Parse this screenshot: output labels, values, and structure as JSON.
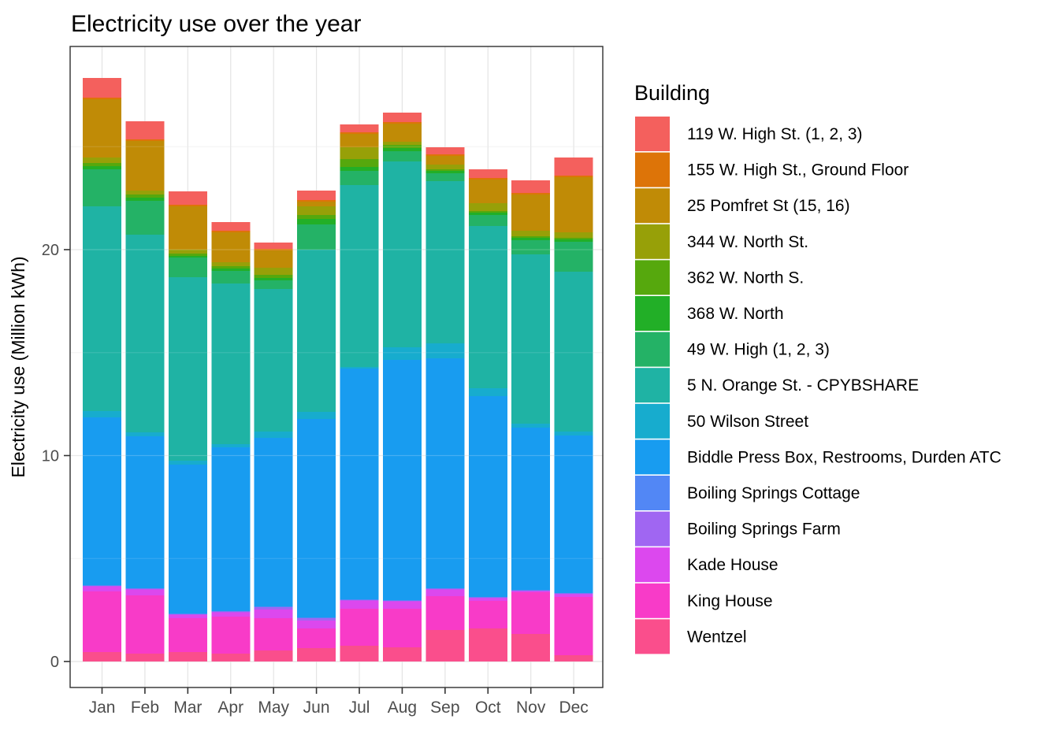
{
  "chart_data": {
    "type": "bar",
    "stacked": true,
    "title": "Electricity use over the year",
    "ylabel": "Electricity use (Million kWh)",
    "xlabel": "",
    "legend_title": "Building",
    "legend_position": "right",
    "grid": "on",
    "ylim": [
      0,
      29
    ],
    "y_major_ticks": [
      0,
      10,
      20
    ],
    "y_minor_ticks": [
      5,
      15,
      25
    ],
    "categories": [
      "Jan",
      "Feb",
      "Mar",
      "Apr",
      "May",
      "Jun",
      "Jul",
      "Aug",
      "Sep",
      "Oct",
      "Nov",
      "Dec"
    ],
    "series": [
      {
        "name": "119 W. High St. (1, 2, 3)",
        "color": "#F4605D",
        "values": [
          0.96,
          0.88,
          0.65,
          0.42,
          0.3,
          0.46,
          0.38,
          0.45,
          0.34,
          0.42,
          0.62,
          0.87
        ]
      },
      {
        "name": "155 W. High St., Ground Floor",
        "color": "#DD7408",
        "values": [
          0.08,
          0.07,
          0.08,
          0.08,
          0.08,
          0.08,
          0.08,
          0.08,
          0.08,
          0.08,
          0.07,
          0.08
        ]
      },
      {
        "name": "25 Pomfret St (15, 16)",
        "color": "#C08B06",
        "values": [
          2.83,
          2.41,
          2.1,
          1.45,
          0.84,
          0.23,
          0.65,
          0.88,
          0.42,
          1.14,
          1.76,
          2.68
        ]
      },
      {
        "name": "344 W. North St.",
        "color": "#97A008",
        "values": [
          0.26,
          0.19,
          0.19,
          0.19,
          0.34,
          0.42,
          0.57,
          0.15,
          0.23,
          0.39,
          0.27,
          0.27
        ]
      },
      {
        "name": "362 W. North S.",
        "color": "#56A80D",
        "values": [
          0.16,
          0.16,
          0.12,
          0.12,
          0.16,
          0.19,
          0.38,
          0.16,
          0.08,
          0.07,
          0.08,
          0.07
        ]
      },
      {
        "name": "368 W. North",
        "color": "#22AF27",
        "values": [
          0.15,
          0.15,
          0.07,
          0.11,
          0.11,
          0.27,
          0.2,
          0.15,
          0.11,
          0.12,
          0.11,
          0.12
        ]
      },
      {
        "name": "49 W. High (1, 2, 3)",
        "color": "#24B266",
        "values": [
          1.8,
          1.64,
          0.96,
          0.62,
          0.42,
          1.22,
          0.68,
          0.5,
          0.38,
          0.53,
          0.69,
          1.45
        ]
      },
      {
        "name": "5 N. Orange St. - CPYBSHARE",
        "color": "#1FB3A4",
        "values": [
          9.94,
          9.6,
          8.91,
          7.8,
          6.92,
          7.88,
          8.84,
          9.02,
          7.88,
          7.88,
          8.22,
          7.76
        ]
      },
      {
        "name": "50 Wilson Street",
        "color": "#17ACCE",
        "values": [
          0.31,
          0.19,
          0.19,
          0.15,
          0.31,
          0.34,
          0.07,
          0.61,
          0.73,
          0.38,
          0.19,
          0.2
        ]
      },
      {
        "name": "Biddle Press Box, Restrooms, Durden ATC",
        "color": "#189CF0",
        "values": [
          8.14,
          7.38,
          7.23,
          7.95,
          8.18,
          9.64,
          11.21,
          11.67,
          11.16,
          9.75,
          7.88,
          7.64
        ]
      },
      {
        "name": "Boiling Springs Cottage",
        "color": "#5287F5",
        "values": [
          0.03,
          0.03,
          0.03,
          0.03,
          0.04,
          0.04,
          0.03,
          0.03,
          0.03,
          0.03,
          0.03,
          0.03
        ]
      },
      {
        "name": "Boiling Springs Farm",
        "color": "#A066F2",
        "values": [
          0.03,
          0.03,
          0.03,
          0.03,
          0.12,
          0.11,
          0.03,
          0.03,
          0.03,
          0.03,
          0.03,
          0.03
        ]
      },
      {
        "name": "Kade House",
        "color": "#DC48EE",
        "values": [
          0.25,
          0.29,
          0.17,
          0.21,
          0.42,
          0.38,
          0.4,
          0.36,
          0.33,
          0.14,
          0.05,
          0.13
        ]
      },
      {
        "name": "King House",
        "color": "#F83BC8",
        "values": [
          2.94,
          2.83,
          1.64,
          1.8,
          1.56,
          0.96,
          1.8,
          1.87,
          1.64,
          1.33,
          2.03,
          2.83
        ]
      },
      {
        "name": "Wentzel",
        "color": "#FA4E8C",
        "values": [
          0.46,
          0.38,
          0.46,
          0.38,
          0.54,
          0.65,
          0.76,
          0.69,
          1.53,
          1.61,
          1.34,
          0.31
        ]
      }
    ],
    "stack_note": "stacked bottom-to-top in reverse legend order (Wentzel at bottom, 119 W. High St. on top)"
  }
}
